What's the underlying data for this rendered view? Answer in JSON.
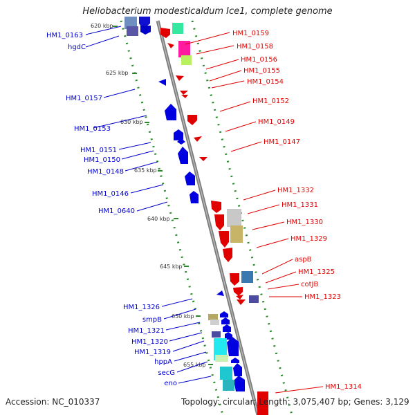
{
  "title": "Heliobacterium modesticaldum Ice1, complete genome",
  "footer": {
    "accession": "Accession: NC_010337",
    "summary": "Topology: circular; Length: 3,075,407 bp; Genes: 3,129"
  },
  "colors": {
    "backbone": "#8a8a8a",
    "forward_strand": "#e00000",
    "reverse_strand": "#0000dd",
    "dotted_track": "#2a8a2a"
  },
  "ticks": [
    "620 kbp",
    "625 kbp",
    "630 kbp",
    "635 kbp",
    "640 kbp",
    "645 kbp",
    "650 kbp",
    "655 kbp"
  ],
  "left_labels": [
    "HM1_0163",
    "hgdC",
    "HM1_0157",
    "HM1_0153",
    "HM1_0151",
    "HM1_0150",
    "HM1_0148",
    "HM1_0146",
    "HM1_0640",
    "HM1_1326",
    "smpB",
    "HM1_1321",
    "HM1_1320",
    "HM1_1319",
    "hppA",
    "secG",
    "eno"
  ],
  "right_labels": [
    "HM1_0159",
    "HM1_0158",
    "HM1_0156",
    "HM1_0155",
    "HM1_0154",
    "HM1_0152",
    "HM1_0149",
    "HM1_0147",
    "HM1_1332",
    "HM1_1331",
    "HM1_1330",
    "HM1_1329",
    "aspB",
    "HM1_1325",
    "cotJB",
    "HM1_1323",
    "HM1_1314"
  ]
}
